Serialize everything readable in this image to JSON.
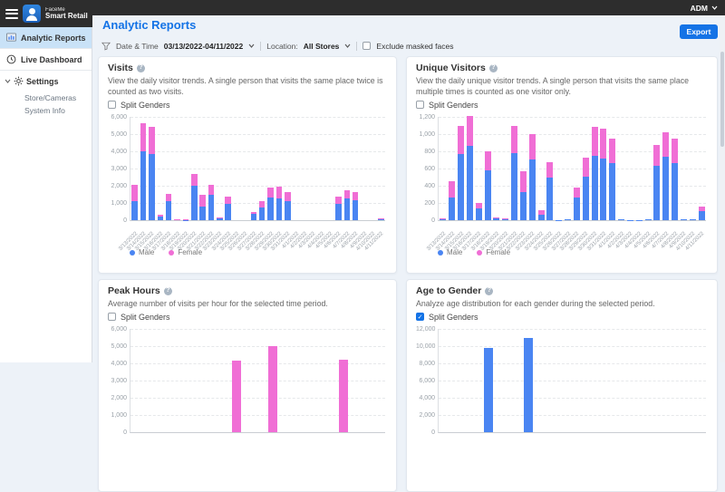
{
  "topbar": {
    "brand_line1": "FaceMe",
    "brand_line2": "Smart Retail",
    "user_menu": "ADM"
  },
  "sidebar": {
    "items": [
      {
        "label": "Analytic Reports",
        "selected": true
      },
      {
        "label": "Live Dashboard",
        "selected": false
      },
      {
        "label": "Settings",
        "selected": false
      }
    ],
    "sub_items": [
      {
        "label": "Store/Cameras"
      },
      {
        "label": "System Info"
      }
    ]
  },
  "header": {
    "title": "Analytic Reports",
    "export_label": "Export"
  },
  "filters": {
    "date_label": "Date & Time",
    "date_value": "03/13/2022-04/11/2022",
    "location_label": "Location:",
    "location_value": "All Stores",
    "exclude_label": "Exclude masked faces",
    "exclude_checked": false
  },
  "split_genders_label": "Split Genders",
  "legend": {
    "male": "Male",
    "female": "Female"
  },
  "colors": {
    "male": "#4a85f2",
    "female": "#f06ed5",
    "accent": "#1473e6",
    "topbar": "#2d2d2d"
  },
  "chart_data": [
    {
      "id": "visits",
      "type": "bar",
      "stacked": true,
      "title": "Visits",
      "description": "View the daily visitor trends. A single person that visits the same place twice is counted as two visits.",
      "split_genders_checked": false,
      "ylim": [
        0,
        6000
      ],
      "ytick_step": 1000,
      "categories": [
        "3/13/2022",
        "3/14/2022",
        "3/15/2022",
        "3/16/2022",
        "3/17/2022",
        "3/18/2022",
        "3/19/2022",
        "3/20/2022",
        "3/21/2022",
        "3/22/2022",
        "3/23/2022",
        "3/24/2022",
        "3/25/2022",
        "3/26/2022",
        "3/27/2022",
        "3/28/2022",
        "3/29/2022",
        "3/30/2022",
        "3/31/2022",
        "4/1/2022",
        "4/2/2022",
        "4/3/2022",
        "4/4/2022",
        "4/5/2022",
        "4/6/2022",
        "4/7/2022",
        "4/8/2022",
        "4/9/2022",
        "4/10/2022",
        "4/11/2022"
      ],
      "series": [
        {
          "name": "Male",
          "values": [
            1100,
            4000,
            3850,
            200,
            1100,
            40,
            25,
            2000,
            800,
            1450,
            100,
            950,
            0,
            0,
            350,
            750,
            1300,
            1250,
            1100,
            0,
            0,
            0,
            0,
            0,
            950,
            1250,
            1150,
            0,
            0,
            30
          ]
        },
        {
          "name": "Female",
          "values": [
            950,
            1650,
            1550,
            100,
            450,
            10,
            5,
            700,
            650,
            600,
            70,
            400,
            0,
            0,
            100,
            350,
            600,
            700,
            550,
            0,
            0,
            0,
            0,
            0,
            400,
            500,
            500,
            0,
            0,
            70
          ]
        }
      ],
      "legend_entries": [
        "Male",
        "Female"
      ],
      "grid": true,
      "legend_position": "bottom-left"
    },
    {
      "id": "unique-visitors",
      "type": "bar",
      "stacked": true,
      "title": "Unique Visitors",
      "description": "View the daily unique visitor trends. A single person that visits the same place multiple times is counted as one visitor only.",
      "split_genders_checked": false,
      "ylim": [
        0,
        1200
      ],
      "ytick_step": 200,
      "categories": [
        "3/13/2022",
        "3/14/2022",
        "3/15/2022",
        "3/16/2022",
        "3/17/2022",
        "3/18/2022",
        "3/19/2022",
        "3/20/2022",
        "3/21/2022",
        "3/22/2022",
        "3/23/2022",
        "3/24/2022",
        "3/25/2022",
        "3/26/2022",
        "3/27/2022",
        "3/28/2022",
        "3/29/2022",
        "3/30/2022",
        "3/31/2022",
        "4/1/2022",
        "4/2/2022",
        "4/3/2022",
        "4/4/2022",
        "4/5/2022",
        "4/6/2022",
        "4/7/2022",
        "4/8/2022",
        "4/9/2022",
        "4/10/2022",
        "4/11/2022"
      ],
      "series": [
        {
          "name": "Male",
          "values": [
            15,
            260,
            770,
            860,
            140,
            575,
            25,
            20,
            775,
            330,
            705,
            65,
            490,
            5,
            10,
            265,
            505,
            750,
            715,
            665,
            15,
            3,
            3,
            10,
            630,
            735,
            665,
            15,
            15,
            110
          ]
        },
        {
          "name": "Female",
          "values": [
            5,
            190,
            330,
            350,
            65,
            225,
            5,
            5,
            315,
            240,
            295,
            55,
            185,
            0,
            0,
            110,
            225,
            330,
            345,
            280,
            0,
            0,
            0,
            0,
            240,
            285,
            285,
            0,
            0,
            50
          ]
        }
      ],
      "legend_entries": [
        "Male",
        "Female"
      ],
      "grid": true,
      "legend_position": "bottom-left"
    },
    {
      "id": "peak-hours",
      "type": "bar",
      "stacked": false,
      "title": "Peak Hours",
      "description": "Average number of visits per hour for the selected time period.",
      "split_genders_checked": false,
      "ylim": [
        0,
        6000
      ],
      "ytick_step": 1000,
      "visible_portion": "top of chart only (cropped by viewport)",
      "bars": [
        {
          "x_fraction": 0.4,
          "value": 4150,
          "series": "Female"
        },
        {
          "x_fraction": 0.54,
          "value": 5000,
          "series": "Female"
        },
        {
          "x_fraction": 0.82,
          "value": 4200,
          "series": "Female"
        }
      ],
      "grid": true
    },
    {
      "id": "age-to-gender",
      "type": "bar",
      "stacked": false,
      "title": "Age to Gender",
      "description": "Analyze age distribution for each gender during the selected period.",
      "split_genders_checked": true,
      "ylim": [
        0,
        12000
      ],
      "ytick_step": 2000,
      "visible_portion": "top of chart only (cropped by viewport)",
      "bars": [
        {
          "x_fraction": 0.17,
          "value": 9800,
          "series": "Male"
        },
        {
          "x_fraction": 0.32,
          "value": 10900,
          "series": "Male"
        }
      ],
      "grid": true
    }
  ]
}
